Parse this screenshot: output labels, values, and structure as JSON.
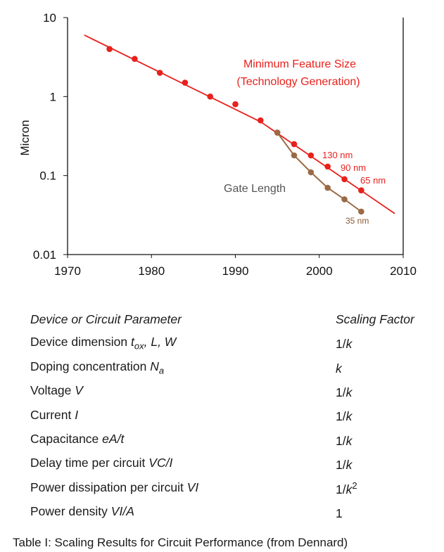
{
  "chart_data": {
    "type": "line",
    "ylabel": "Micron",
    "xlabel": "",
    "xlim": [
      1970,
      2010
    ],
    "ylim": [
      0.01,
      10
    ],
    "y_scale": "log",
    "x_ticks": [
      "1970",
      "1980",
      "1990",
      "2000",
      "2010"
    ],
    "y_ticks": [
      "0.01",
      "0.1",
      "1",
      "10"
    ],
    "grid": false,
    "series": [
      {
        "name": "Minimum Feature Size",
        "color": "#e8211c",
        "trend_line": {
          "x": [
            1972,
            1993,
            2009
          ],
          "y": [
            6.0,
            0.48,
            0.033
          ]
        },
        "points": [
          {
            "x": 1975,
            "y": 4.0
          },
          {
            "x": 1978,
            "y": 3.0
          },
          {
            "x": 1981,
            "y": 2.0
          },
          {
            "x": 1984,
            "y": 1.5
          },
          {
            "x": 1987,
            "y": 1.0
          },
          {
            "x": 1990,
            "y": 0.8
          },
          {
            "x": 1993,
            "y": 0.5
          },
          {
            "x": 1995,
            "y": 0.35
          },
          {
            "x": 1997,
            "y": 0.25
          },
          {
            "x": 1999,
            "y": 0.18
          },
          {
            "x": 2001,
            "y": 0.13
          },
          {
            "x": 2003,
            "y": 0.09
          },
          {
            "x": 2005,
            "y": 0.065
          }
        ]
      },
      {
        "name": "Gate Length",
        "color": "#9a6a45",
        "points": [
          {
            "x": 1995,
            "y": 0.35
          },
          {
            "x": 1997,
            "y": 0.18
          },
          {
            "x": 1999,
            "y": 0.11
          },
          {
            "x": 2001,
            "y": 0.07
          },
          {
            "x": 2003,
            "y": 0.05
          },
          {
            "x": 2005,
            "y": 0.035
          }
        ]
      }
    ],
    "annotations": {
      "feature_title": "Minimum Feature Size",
      "feature_subtitle": "(Technology Generation)",
      "gate_label": "Gate Length",
      "nm130": "130 nm",
      "nm90": "90 nm",
      "nm65": "65 nm",
      "nm35": "35 nm"
    }
  },
  "table": {
    "header": {
      "param": "Device or Circuit Parameter",
      "factor": "Scaling Factor"
    },
    "rows": [
      {
        "name": "Device dimension",
        "var_base": "t",
        "var_sub": "ox",
        "var_rest": ", L, W",
        "factor_base": "1/",
        "factor_var": "k",
        "factor_sup": ""
      },
      {
        "name": "Doping concentration",
        "var_base": "N",
        "var_sub": "a",
        "var_rest": "",
        "factor_base": "",
        "factor_var": "k",
        "factor_sup": ""
      },
      {
        "name": "Voltage",
        "var_base": "V",
        "var_sub": "",
        "var_rest": "",
        "factor_base": "1/",
        "factor_var": "k",
        "factor_sup": ""
      },
      {
        "name": "Current",
        "var_base": "I",
        "var_sub": "",
        "var_rest": "",
        "factor_base": "1/",
        "factor_var": "k",
        "factor_sup": ""
      },
      {
        "name": "Capacitance",
        "var_base": "eA/t",
        "var_sub": "",
        "var_rest": "",
        "factor_base": "1/",
        "factor_var": "k",
        "factor_sup": ""
      },
      {
        "name": "Delay time per circuit",
        "var_base": "VC/I",
        "var_sub": "",
        "var_rest": "",
        "factor_base": "1/",
        "factor_var": "k",
        "factor_sup": ""
      },
      {
        "name": "Power dissipation per circuit",
        "var_base": "VI",
        "var_sub": "",
        "var_rest": "",
        "factor_base": "1/",
        "factor_var": "k",
        "factor_sup": "2"
      },
      {
        "name": "Power density",
        "var_base": "VI/A",
        "var_sub": "",
        "var_rest": "",
        "factor_base": "1",
        "factor_var": "",
        "factor_sup": ""
      }
    ]
  },
  "caption": "Table I: Scaling Results for Circuit Performance (from Dennard)"
}
